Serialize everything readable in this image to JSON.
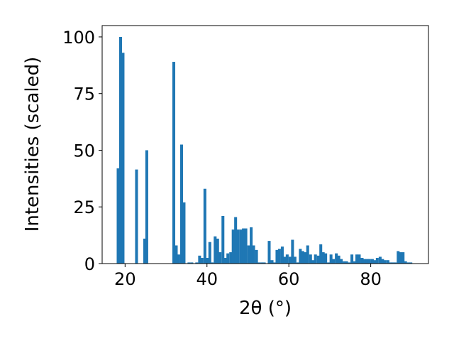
{
  "chart_data": {
    "type": "bar",
    "xlabel": "2θ (°)",
    "ylabel": "Intensities (scaled)",
    "xlim": [
      14.4,
      94.1
    ],
    "ylim": [
      0,
      105
    ],
    "bar_width": 0.7,
    "bar_color": "#1f77b4",
    "grid": false,
    "x_ticks": [
      {
        "value": 20,
        "label": "20"
      },
      {
        "value": 40,
        "label": "40"
      },
      {
        "value": 60,
        "label": "60"
      },
      {
        "value": 80,
        "label": "80"
      }
    ],
    "y_ticks": [
      {
        "value": 0,
        "label": "0"
      },
      {
        "value": 25,
        "label": "25"
      },
      {
        "value": 50,
        "label": "50"
      },
      {
        "value": 75,
        "label": "75"
      },
      {
        "value": 100,
        "label": "100"
      }
    ],
    "x": [
      18.3,
      18.9,
      19.5,
      22.8,
      24.8,
      25.3,
      31.9,
      32.5,
      33.1,
      33.8,
      34.4,
      35.6,
      36.3,
      37.5,
      38.2,
      38.8,
      39.5,
      40.1,
      40.7,
      41.3,
      42.0,
      42.6,
      43.2,
      43.9,
      44.5,
      45.1,
      45.8,
      46.4,
      47.0,
      47.6,
      48.3,
      48.9,
      49.5,
      50.2,
      50.8,
      51.4,
      52.1,
      52.7,
      53.4,
      54.0,
      55.2,
      55.9,
      56.5,
      57.1,
      57.7,
      58.4,
      59.0,
      59.6,
      60.3,
      60.9,
      61.5,
      62.2,
      62.8,
      63.4,
      64.0,
      64.6,
      65.3,
      65.9,
      66.5,
      67.2,
      67.8,
      68.4,
      69.0,
      69.7,
      70.3,
      70.9,
      71.6,
      72.2,
      72.8,
      73.5,
      74.1,
      74.7,
      75.4,
      76.0,
      76.6,
      77.2,
      77.9,
      78.5,
      79.1,
      79.7,
      80.4,
      81.0,
      81.6,
      82.3,
      82.9,
      83.5,
      84.2,
      84.8,
      85.4,
      86.0,
      86.7,
      87.3,
      87.9,
      88.5,
      89.2,
      89.8
    ],
    "values": [
      42,
      100,
      93,
      41.5,
      11,
      50,
      89,
      8,
      4,
      52.5,
      27,
      0.5,
      0.5,
      0.5,
      3.5,
      2.5,
      33,
      2.5,
      9.5,
      0.5,
      12,
      11,
      5,
      21,
      2.5,
      4.5,
      5,
      15,
      20.5,
      15,
      15,
      15.5,
      15.5,
      8,
      16,
      8,
      6,
      0.5,
      0.5,
      0.5,
      10,
      1.5,
      0.5,
      6,
      6.5,
      7.5,
      3,
      4,
      3,
      10.5,
      3,
      0.5,
      6.5,
      5.5,
      5,
      8,
      4,
      1.5,
      4,
      3.5,
      8.5,
      5,
      4.5,
      0.5,
      4,
      2,
      4.5,
      3.5,
      2,
      1,
      1,
      0.5,
      4,
      1,
      4,
      4,
      2.5,
      2,
      2,
      2,
      2,
      1.5,
      2.5,
      3,
      2,
      1.5,
      1.5,
      0.5,
      0.5,
      0.5,
      5.5,
      5,
      5,
      1,
      0.5,
      0.5
    ]
  }
}
